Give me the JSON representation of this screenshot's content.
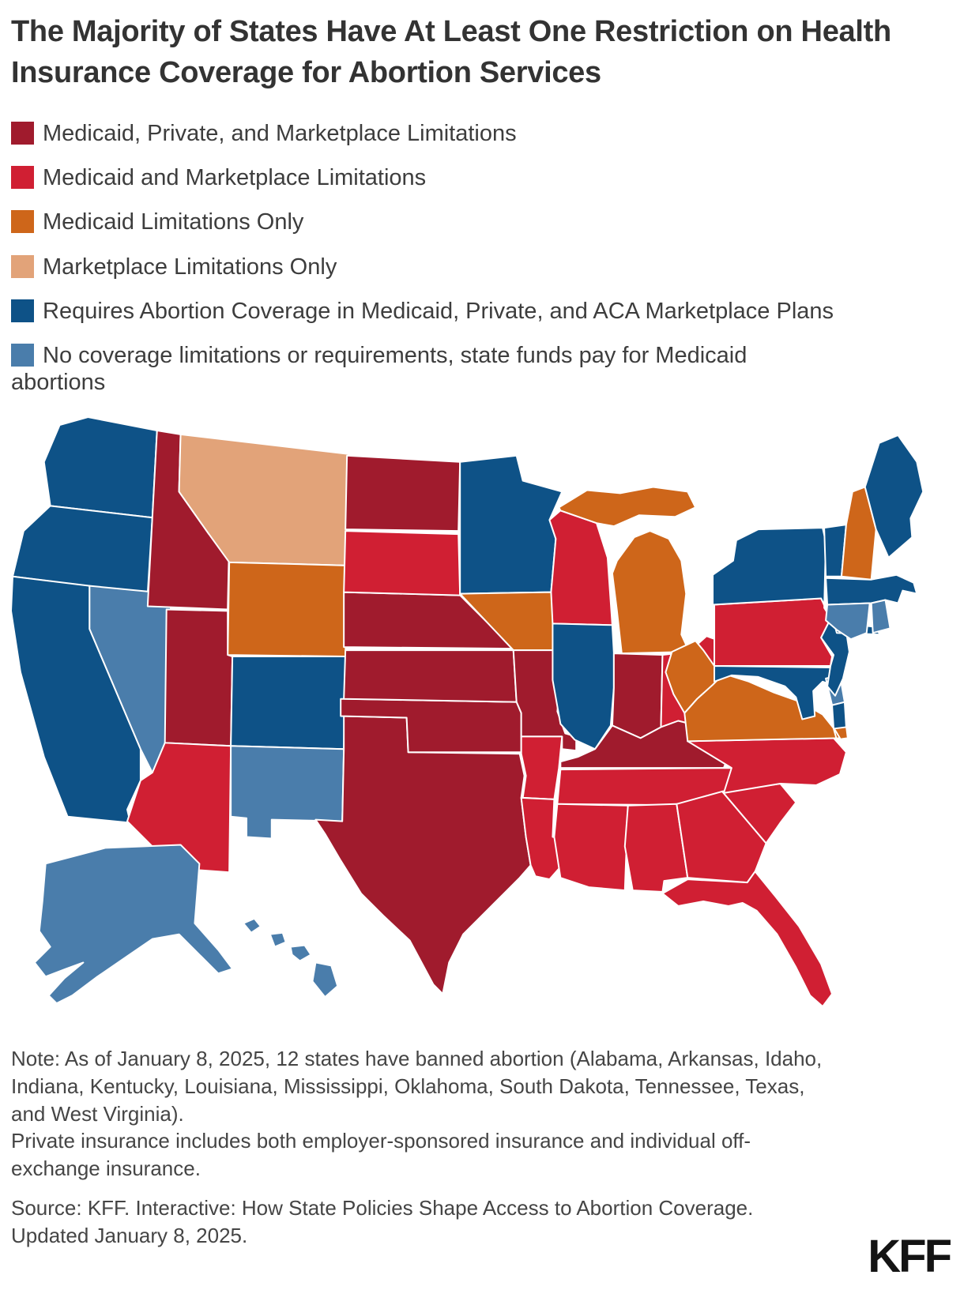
{
  "title": "The Majority of States Have At Least One Restriction on Health Insurance Coverage for Abortion Services",
  "colors": {
    "background": "#ffffff",
    "title_text": "#333333",
    "body_text": "#454545",
    "state_border": "#ffffff"
  },
  "legend": [
    {
      "id": "medicaid_private_marketplace",
      "label": "Medicaid, Private, and Marketplace Limitations",
      "color": "#A01B2D"
    },
    {
      "id": "medicaid_marketplace",
      "label": "Medicaid and Marketplace Limitations",
      "color": "#D01F33"
    },
    {
      "id": "medicaid_only",
      "label": "Medicaid Limitations Only",
      "color": "#CE661A"
    },
    {
      "id": "marketplace_only",
      "label": "Marketplace Limitations Only",
      "color": "#E2A379"
    },
    {
      "id": "requires_coverage",
      "label": "Requires Abortion Coverage in Medicaid, Private, and ACA Marketplace Plans",
      "color": "#0E5287"
    },
    {
      "id": "no_limits",
      "label": "No coverage limitations or requirements, state funds pay for Medicaid abortions",
      "color": "#4A7DAB",
      "wrap_after": "Medicaid"
    }
  ],
  "chart_data": {
    "type": "choropleth-map",
    "title": "The Majority of States Have At Least One Restriction on Health Insurance Coverage for Abortion Services",
    "legend_position": "top-left",
    "categories": [
      "Medicaid, Private, and Marketplace Limitations",
      "Medicaid and Marketplace Limitations",
      "Medicaid Limitations Only",
      "Marketplace Limitations Only",
      "Requires Abortion Coverage in Medicaid, Private, and ACA Marketplace Plans",
      "No coverage limitations or requirements, state funds pay for Medicaid abortions"
    ],
    "states": {
      "WA": "requires_coverage",
      "OR": "requires_coverage",
      "CA": "requires_coverage",
      "NV": "no_limits",
      "ID": "medicaid_private_marketplace",
      "MT": "marketplace_only",
      "WY": "medicaid_only",
      "UT": "medicaid_private_marketplace",
      "CO": "requires_coverage",
      "AZ": "medicaid_marketplace",
      "NM": "no_limits",
      "ND": "medicaid_private_marketplace",
      "SD": "medicaid_marketplace",
      "NE": "medicaid_private_marketplace",
      "KS": "medicaid_private_marketplace",
      "OK": "medicaid_private_marketplace",
      "TX": "medicaid_private_marketplace",
      "MN": "requires_coverage",
      "IA": "medicaid_only",
      "MO": "medicaid_private_marketplace",
      "AR": "medicaid_marketplace",
      "LA": "medicaid_marketplace",
      "WI": "medicaid_marketplace",
      "IL": "requires_coverage",
      "MI": "medicaid_only",
      "IN": "medicaid_private_marketplace",
      "OH": "medicaid_marketplace",
      "KY": "medicaid_private_marketplace",
      "TN": "medicaid_marketplace",
      "MS": "medicaid_marketplace",
      "AL": "medicaid_marketplace",
      "GA": "medicaid_marketplace",
      "FL": "medicaid_marketplace",
      "SC": "medicaid_marketplace",
      "NC": "medicaid_marketplace",
      "VA": "medicaid_only",
      "WV": "medicaid_only",
      "MD": "requires_coverage",
      "DE": "no_limits",
      "PA": "medicaid_marketplace",
      "NJ": "requires_coverage",
      "NY": "requires_coverage",
      "VT": "requires_coverage",
      "NH": "medicaid_only",
      "ME": "requires_coverage",
      "MA": "requires_coverage",
      "CT": "no_limits",
      "RI": "no_limits",
      "AK": "no_limits",
      "HI": "no_limits"
    }
  },
  "notes": [
    "Note: As of January 8, 2025, 12 states have banned abortion (Alabama, Arkansas, Idaho, Indiana, Kentucky, Louisiana, Mississippi, Oklahoma, South Dakota, Tennessee, Texas, and West Virginia).",
    "Private insurance includes both employer-sponsored insurance and individual off-exchange insurance."
  ],
  "source": "Source: KFF. Interactive: How State Policies Shape Access to Abortion Coverage. Updated January 8, 2025.",
  "logo": "KFF"
}
